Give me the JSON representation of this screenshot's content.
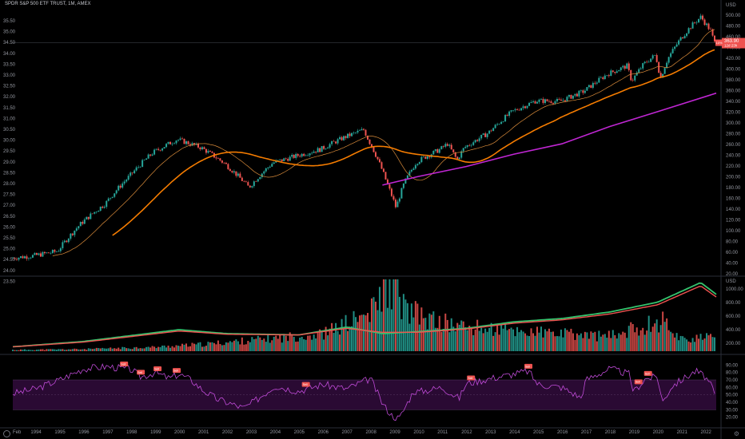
{
  "legend": {
    "symbol_title": "SPDR S&P 500 ETF TRUST, 1M, AMEX"
  },
  "icons": {
    "timezone": "globe-icon",
    "settings": "gear-icon"
  },
  "colors": {
    "background": "#000000",
    "up": "#26a69a",
    "down": "#ef5350",
    "ma_fast": "#ff9800",
    "ma_mid": "#f57c00",
    "ma_slow": "#c026d3",
    "rsi_line": "#c04bd8",
    "rsi_band": "#2a0a33",
    "vol_ma_green": "#35c46e",
    "vol_ma_red": "#ef5350",
    "price_label_bg": "#ef5350"
  },
  "chart_data": [
    {
      "type": "candlestick",
      "title": "SPDR S&P 500 ETF TRUST, 1M, AMEX",
      "y_scale": "log",
      "x_range": [
        1993.05,
        2022.45
      ],
      "left_axis": {
        "ticks": [
          "35.50",
          "35.00",
          "34.50",
          "34.00",
          "33.50",
          "33.00",
          "32.50",
          "32.00",
          "31.50",
          "31.00",
          "30.50",
          "30.00",
          "29.50",
          "29.00",
          "28.50",
          "28.00",
          "27.50",
          "27.00",
          "26.50",
          "26.00",
          "25.50",
          "25.00",
          "24.50",
          "24.00",
          "23.50"
        ]
      },
      "right_axis": {
        "label": "USD",
        "ticks": [
          "500.00",
          "480.00",
          "460.00",
          "440.00",
          "420.00",
          "400.00",
          "380.00",
          "360.00",
          "340.00",
          "320.00",
          "300.00",
          "280.00",
          "260.00",
          "240.00",
          "220.00",
          "200.00",
          "180.00",
          "160.00",
          "140.00",
          "120.00",
          "100.00",
          "80.00",
          "60.00",
          "40.00",
          "20.00"
        ]
      },
      "last_price_label": "363.90",
      "last_price_sublabel": "12d 23h",
      "last_price_marker": "10%",
      "series": [
        {
          "name": "",
          "kind": "moving_average",
          "color": "#ff9800"
        },
        {
          "name": "",
          "kind": "moving_average",
          "color": "#f57c00"
        },
        {
          "name": "",
          "kind": "moving_average",
          "color": "#c026d3"
        }
      ],
      "anchors": [
        [
          1993.1,
          44
        ],
        [
          1994,
          45
        ],
        [
          1995,
          47
        ],
        [
          1996,
          62
        ],
        [
          1997,
          75
        ],
        [
          1998,
          98
        ],
        [
          1999,
          124
        ],
        [
          2000,
          141
        ],
        [
          2001,
          130
        ],
        [
          2002,
          111
        ],
        [
          2003,
          88
        ],
        [
          2004,
          112
        ],
        [
          2005,
          120
        ],
        [
          2006,
          128
        ],
        [
          2007,
          144
        ],
        [
          2007.8,
          155
        ],
        [
          2008,
          140
        ],
        [
          2008.8,
          90
        ],
        [
          2009.15,
          72
        ],
        [
          2009.5,
          92
        ],
        [
          2010,
          113
        ],
        [
          2011,
          128
        ],
        [
          2011.3,
          135
        ],
        [
          2011.7,
          115
        ],
        [
          2012,
          130
        ],
        [
          2013,
          150
        ],
        [
          2014,
          185
        ],
        [
          2015,
          206
        ],
        [
          2016,
          205
        ],
        [
          2017,
          226
        ],
        [
          2018,
          268
        ],
        [
          2018.8,
          290
        ],
        [
          2019,
          250
        ],
        [
          2019.5,
          295
        ],
        [
          2020,
          323
        ],
        [
          2020.2,
          255
        ],
        [
          2020.5,
          310
        ],
        [
          2021,
          373
        ],
        [
          2021.5,
          430
        ],
        [
          2021.9,
          470
        ],
        [
          2022,
          451
        ],
        [
          2022.3,
          410
        ],
        [
          2022.45,
          364
        ]
      ],
      "ma_slow_anchors": [
        [
          2008.5,
          90
        ],
        [
          2010,
          98
        ],
        [
          2012,
          108
        ],
        [
          2014,
          122
        ],
        [
          2016,
          135
        ],
        [
          2018,
          160
        ],
        [
          2020,
          185
        ],
        [
          2022.45,
          222
        ]
      ]
    },
    {
      "type": "area",
      "title": "Volume",
      "right_axis": {
        "label": "USD",
        "ticks": [
          "1000.00",
          "800.00",
          "600.00",
          "400.00",
          "200.00"
        ]
      },
      "bars_profile": [
        [
          1993.1,
          0.02
        ],
        [
          1996,
          0.03
        ],
        [
          1999,
          0.06
        ],
        [
          2001,
          0.1
        ],
        [
          2003,
          0.16
        ],
        [
          2006,
          0.25
        ],
        [
          2008,
          0.55
        ],
        [
          2008.8,
          1.0
        ],
        [
          2009.5,
          0.6
        ],
        [
          2010.5,
          0.45
        ],
        [
          2012,
          0.35
        ],
        [
          2014,
          0.3
        ],
        [
          2016,
          0.25
        ],
        [
          2018,
          0.22
        ],
        [
          2020.2,
          0.45
        ],
        [
          2021,
          0.18
        ],
        [
          2022.45,
          0.2
        ]
      ],
      "ma_green": [
        [
          1993.1,
          0.02
        ],
        [
          1996,
          0.1
        ],
        [
          2000,
          0.28
        ],
        [
          2002,
          0.22
        ],
        [
          2005,
          0.2
        ],
        [
          2007,
          0.32
        ],
        [
          2008.5,
          0.22
        ],
        [
          2010,
          0.25
        ],
        [
          2012,
          0.3
        ],
        [
          2014,
          0.4
        ],
        [
          2016,
          0.45
        ],
        [
          2018,
          0.55
        ],
        [
          2020,
          0.7
        ],
        [
          2021.8,
          1.0
        ],
        [
          2022.45,
          0.82
        ]
      ],
      "ma_red": [
        [
          1993.1,
          0.02
        ],
        [
          1996,
          0.09
        ],
        [
          2000,
          0.26
        ],
        [
          2002,
          0.21
        ],
        [
          2005,
          0.2
        ],
        [
          2007,
          0.3
        ],
        [
          2008.5,
          0.24
        ],
        [
          2010,
          0.24
        ],
        [
          2012,
          0.29
        ],
        [
          2014,
          0.38
        ],
        [
          2016,
          0.43
        ],
        [
          2018,
          0.52
        ],
        [
          2020,
          0.66
        ],
        [
          2021.8,
          0.95
        ],
        [
          2022.45,
          0.78
        ]
      ]
    },
    {
      "type": "line",
      "title": "RSI",
      "ylim": [
        10,
        100
      ],
      "right_axis": {
        "ticks": [
          "90.00",
          "80.00",
          "70.00",
          "60.00",
          "50.00",
          "40.00",
          "30.00",
          "20.00"
        ]
      },
      "bands": [
        30,
        70
      ],
      "anchors": [
        [
          1993.1,
          52
        ],
        [
          1994,
          58
        ],
        [
          1995,
          70
        ],
        [
          1996,
          85
        ],
        [
          1997,
          88
        ],
        [
          1998,
          84
        ],
        [
          1998.4,
          74
        ],
        [
          1999,
          80
        ],
        [
          1999.6,
          72
        ],
        [
          2000,
          78
        ],
        [
          2000.5,
          70
        ],
        [
          2001,
          56
        ],
        [
          2001.6,
          44
        ],
        [
          2002,
          40
        ],
        [
          2002.7,
          32
        ],
        [
          2003,
          38
        ],
        [
          2003.6,
          52
        ],
        [
          2004,
          62
        ],
        [
          2005,
          55
        ],
        [
          2006,
          64
        ],
        [
          2007,
          58
        ],
        [
          2008,
          72
        ],
        [
          2008.5,
          38
        ],
        [
          2008.9,
          22
        ],
        [
          2009.2,
          18
        ],
        [
          2009.8,
          55
        ],
        [
          2010,
          54
        ],
        [
          2011,
          60
        ],
        [
          2011.7,
          45
        ],
        [
          2012,
          65
        ],
        [
          2013,
          72
        ],
        [
          2014,
          78
        ],
        [
          2014.6,
          82
        ],
        [
          2015,
          64
        ],
        [
          2016,
          60
        ],
        [
          2016.8,
          46
        ],
        [
          2017,
          70
        ],
        [
          2018,
          85
        ],
        [
          2018.8,
          78
        ],
        [
          2019,
          54
        ],
        [
          2019.5,
          72
        ],
        [
          2020,
          74
        ],
        [
          2020.2,
          40
        ],
        [
          2020.6,
          62
        ],
        [
          2021,
          70
        ],
        [
          2021.6,
          82
        ],
        [
          2021.9,
          76
        ],
        [
          2022,
          74
        ],
        [
          2022.3,
          58
        ],
        [
          2022.45,
          44
        ]
      ],
      "sell_labels": [
        "Sell",
        "Sell",
        "Sell",
        "Sell",
        "Sell",
        "Sell",
        "Sell",
        "Sell",
        "Sell"
      ]
    }
  ],
  "x_axis": {
    "ticks": [
      "Feb",
      "1994",
      "1995",
      "1996",
      "1997",
      "1998",
      "1999",
      "2000",
      "2001",
      "2002",
      "2003",
      "2004",
      "2005",
      "2006",
      "2007",
      "2008",
      "2009",
      "2010",
      "2011",
      "2012",
      "2013",
      "2014",
      "2015",
      "2016",
      "2017",
      "2018",
      "2019",
      "2020",
      "2021",
      "2022"
    ]
  }
}
